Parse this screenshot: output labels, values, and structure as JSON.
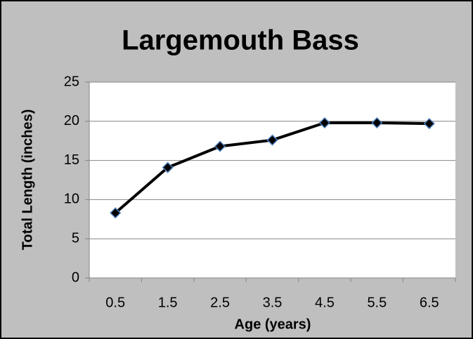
{
  "chart_data": {
    "type": "line",
    "title": "Largemouth Bass",
    "x_label": "Age (years)",
    "y_label": "Total Length (inches)",
    "categories": [
      "0.5",
      "1.5",
      "2.5",
      "3.5",
      "4.5",
      "5.5",
      "6.5"
    ],
    "values": [
      8.3,
      14.1,
      16.8,
      17.6,
      19.8,
      19.8,
      19.7
    ],
    "color": "#000000",
    "marker_edge_color": "#4f81bd",
    "ylim": [
      0,
      25
    ],
    "yticks": [
      0,
      5,
      10,
      15,
      20,
      25
    ],
    "grid": true
  }
}
